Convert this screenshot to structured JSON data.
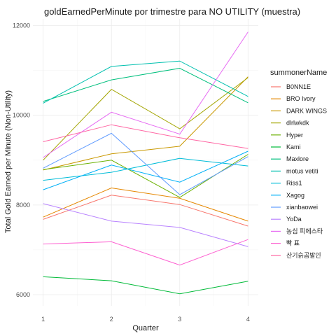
{
  "chart_data": {
    "type": "line",
    "title": "goldEarnedPerMinute por trimestre para NO UTILITY (muestra)",
    "xlabel": "Quarter",
    "ylabel": "Total Gold Earned per Minute (Non-Utility)",
    "x": [
      1,
      2,
      3,
      4
    ],
    "x_ticks": [
      "1",
      "2",
      "3",
      "4"
    ],
    "xlim": [
      0.85,
      4.15
    ],
    "ylim": [
      5750,
      12150
    ],
    "y_ticks": [
      6000,
      8000,
      10000,
      12000
    ],
    "y_tick_labels": [
      "6000",
      "8000",
      "10000",
      "12000"
    ],
    "grid": true,
    "legend_title": "summonerName",
    "legend_position": "right",
    "series": [
      {
        "name": "B0NN1E",
        "color": "#F8766D",
        "values": [
          7680,
          8220,
          8010,
          7530
        ]
      },
      {
        "name": "BRO Ivory",
        "color": "#E58700",
        "values": [
          7730,
          8380,
          8150,
          7640
        ]
      },
      {
        "name": "DARK WINGS",
        "color": "#C99800",
        "values": [
          8780,
          9140,
          9310,
          10860
        ]
      },
      {
        "name": "dlrlwkdk",
        "color": "#A3A500",
        "values": [
          9000,
          10580,
          9700,
          10840
        ]
      },
      {
        "name": "Hyper",
        "color": "#6BB100",
        "values": [
          8790,
          9000,
          8170,
          9130
        ]
      },
      {
        "name": "Kami",
        "color": "#00BA38",
        "values": [
          6400,
          6310,
          6020,
          6300
        ]
      },
      {
        "name": "Maxlore",
        "color": "#00BF7D",
        "values": [
          10310,
          10790,
          11050,
          10280
        ]
      },
      {
        "name": "motus vetiti",
        "color": "#00C0AF",
        "values": [
          10270,
          11090,
          11210,
          10420
        ]
      },
      {
        "name": "Riss1",
        "color": "#00BCD8",
        "values": [
          8550,
          8730,
          9040,
          8870
        ]
      },
      {
        "name": "Xagog",
        "color": "#00B0F6",
        "values": [
          8340,
          8890,
          8510,
          9200
        ]
      },
      {
        "name": "xianbaowei",
        "color": "#619CFF",
        "values": [
          8820,
          9600,
          8230,
          9080
        ]
      },
      {
        "name": "YoDa",
        "color": "#B983FF",
        "values": [
          8030,
          7640,
          7500,
          7070
        ]
      },
      {
        "name": "농심 피에스타",
        "color": "#E76BF3",
        "values": [
          9060,
          10070,
          9580,
          11860
        ]
      },
      {
        "name": "빡 표",
        "color": "#FD61D1",
        "values": [
          7130,
          7180,
          6660,
          7230
        ]
      },
      {
        "name": "산기슭곰발인",
        "color": "#FF67A4",
        "values": [
          9410,
          9790,
          9500,
          9260
        ]
      }
    ]
  }
}
